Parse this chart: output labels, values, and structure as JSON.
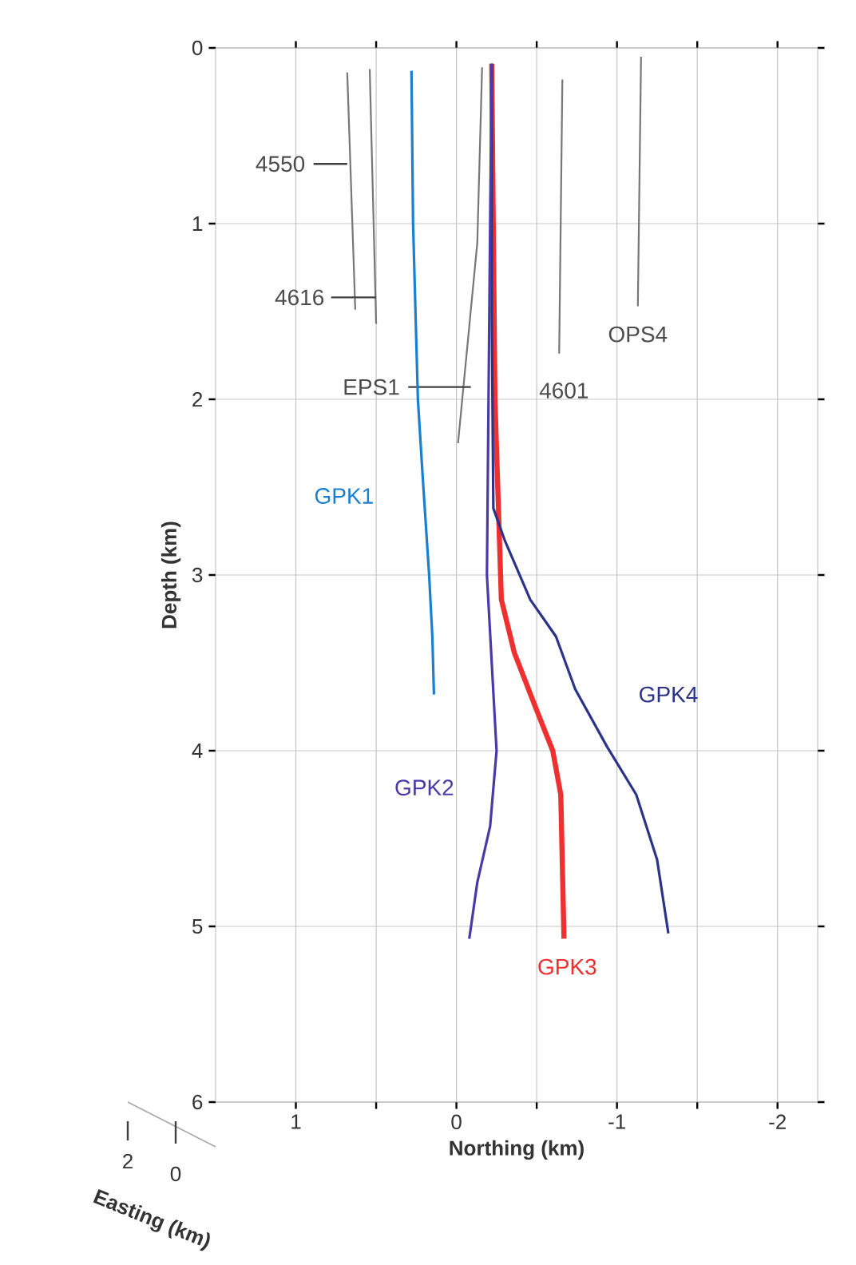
{
  "chart_data": {
    "type": "line",
    "xlabel": "Northing (km)",
    "ylabel": "Depth (km)",
    "xlim": [
      1.5,
      -2.25
    ],
    "ylim": [
      6,
      0
    ],
    "xticks": [
      1,
      {
        "value": 0.5,
        "label": null
      },
      0,
      {
        "value": -0.5,
        "label": null
      },
      -1,
      {
        "value": -1.5,
        "label": null
      },
      -2
    ],
    "yticks": [
      0,
      1,
      2,
      3,
      4,
      5,
      6
    ],
    "grid": true,
    "legend": false,
    "annotations": [
      "2",
      "0",
      "Easting (km)"
    ],
    "series": [
      {
        "name": "4550",
        "color": "#777777",
        "x": [
          0.68,
          0.63
        ],
        "values": [
          0.14,
          1.49
        ]
      },
      {
        "name": "4616",
        "color": "#777777",
        "x": [
          0.54,
          0.5
        ],
        "values": [
          0.12,
          1.57
        ]
      },
      {
        "name": "EPS1",
        "color": "#777777",
        "x": [
          -0.16,
          -0.13,
          -0.01
        ],
        "values": [
          0.11,
          1.11,
          2.25
        ]
      },
      {
        "name": "4601",
        "color": "#777777",
        "x": [
          -0.66,
          -0.64
        ],
        "values": [
          0.18,
          1.74
        ]
      },
      {
        "name": "OPS4",
        "color": "#777777",
        "x": [
          -1.15,
          -1.13
        ],
        "values": [
          0.05,
          1.47
        ]
      },
      {
        "name": "GPK1",
        "color": "#1b7fd0",
        "x": [
          0.28,
          0.27,
          0.24,
          0.21,
          0.17,
          0.15,
          0.14
        ],
        "values": [
          0.13,
          1.0,
          2.0,
          2.44,
          3.0,
          3.35,
          3.68
        ]
      },
      {
        "name": "GPK3",
        "color": "#ee3030",
        "x": [
          -0.22,
          -0.24,
          -0.28,
          -0.36,
          -0.5,
          -0.6,
          -0.65,
          -0.67
        ],
        "values": [
          0.09,
          2.0,
          3.14,
          3.44,
          3.77,
          4.0,
          4.25,
          5.07
        ]
      },
      {
        "name": "GPK4",
        "color": "#2b3488",
        "x": [
          -0.22,
          -0.22,
          -0.23,
          -0.3,
          -0.46,
          -0.62,
          -0.74,
          -0.94,
          -1.12,
          -1.25,
          -1.32
        ],
        "values": [
          0.09,
          1.5,
          2.62,
          2.8,
          3.14,
          3.35,
          3.65,
          3.98,
          4.25,
          4.62,
          5.04
        ]
      },
      {
        "name": "GPK2",
        "color": "#4a3aa8",
        "x": [
          -0.22,
          -0.21,
          -0.2,
          -0.19,
          -0.25,
          -0.21,
          -0.13,
          -0.08
        ],
        "values": [
          0.09,
          1.0,
          2.0,
          3.0,
          4.0,
          4.43,
          4.75,
          5.07
        ]
      }
    ]
  }
}
